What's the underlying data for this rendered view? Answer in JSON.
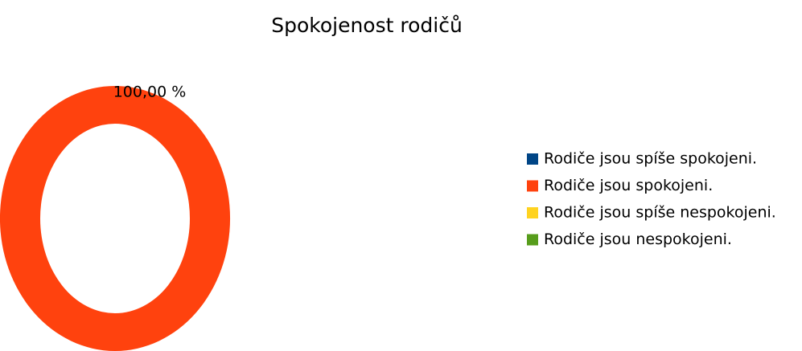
{
  "chart_data": {
    "type": "donut",
    "title": "Spokojenost rodičů",
    "categories": [
      "Rodiče jsou spíše spokojeni.",
      "Rodiče jsou spokojeni.",
      "Rodiče jsou spíše nespokojeni.",
      "Rodiče jsou nespokojeni."
    ],
    "values": [
      0,
      100,
      0,
      0
    ],
    "value_labels": [
      null,
      "100,00 %",
      null,
      null
    ],
    "colors": [
      "#004586",
      "#ff420e",
      "#ffd320",
      "#579d1c"
    ],
    "legend": "right"
  }
}
